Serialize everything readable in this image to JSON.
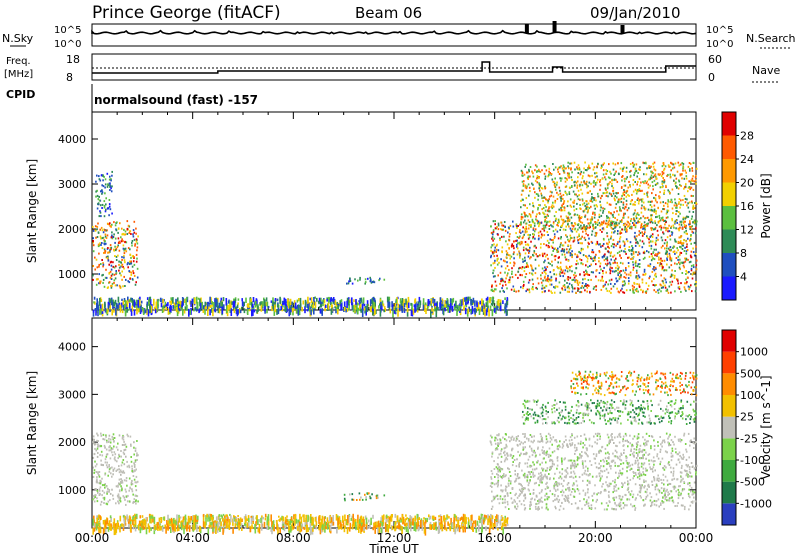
{
  "header": {
    "station": "Prince George (fitACF)",
    "beam": "Beam 06",
    "date": "09/Jan/2010"
  },
  "side_labels": {
    "nsky": "N.Sky",
    "nsearch": "N.Search",
    "freq": "Freq.",
    "freq_unit": "[MHz]",
    "nave": "Nave",
    "cpid": "CPID",
    "cpid_value": "normalsound (fast) -157"
  },
  "mini_axes": {
    "noise_ticks_left": [
      "10^5",
      "10^0"
    ],
    "noise_ticks_right": [
      "10^5",
      "10^0"
    ],
    "freq_ticks": [
      "18",
      "8"
    ],
    "nave_ticks": [
      "60",
      "0"
    ]
  },
  "x_axis": {
    "label": "Time UT",
    "ticks": [
      "00:00",
      "04:00",
      "08:00",
      "12:00",
      "16:00",
      "20:00",
      "00:00"
    ]
  },
  "chart_data": [
    {
      "type": "heatmap",
      "title": "Power",
      "ylabel": "Slant Range [km]",
      "ylim": [
        200,
        4600
      ],
      "yticks": [
        1000,
        2000,
        3000,
        4000
      ],
      "xlim_hours": [
        0,
        24
      ],
      "colorbar": {
        "label": "Power [dB]",
        "ticks": [
          "28",
          "24",
          "20",
          "16",
          "12",
          "8",
          "4"
        ],
        "colors": [
          "#1a1aff",
          "#1f4fbf",
          "#2e8b57",
          "#5bbf3f",
          "#f2d000",
          "#ff9900",
          "#ff5a00",
          "#e00000"
        ]
      },
      "scatter_regions": [
        {
          "t": [
            0.0,
            1.8
          ],
          "r": [
            700,
            2200
          ],
          "level": "strong"
        },
        {
          "t": [
            0.1,
            0.8
          ],
          "r": [
            2300,
            3300
          ],
          "level": "weak"
        },
        {
          "t": [
            10.0,
            11.6
          ],
          "r": [
            800,
            950
          ],
          "level": "weak"
        },
        {
          "t": [
            0.0,
            16.5
          ],
          "r": [
            200,
            500
          ],
          "level": "ground"
        },
        {
          "t": [
            15.8,
            24.0
          ],
          "r": [
            600,
            2200
          ],
          "level": "strong"
        },
        {
          "t": [
            17.0,
            24.0
          ],
          "r": [
            2000,
            3500
          ],
          "level": "medium"
        }
      ]
    },
    {
      "type": "heatmap",
      "title": "Velocity",
      "ylabel": "Slant Range [km]",
      "ylim": [
        200,
        4600
      ],
      "yticks": [
        1000,
        2000,
        3000,
        4000
      ],
      "xlim_hours": [
        0,
        24
      ],
      "colorbar": {
        "label": "Velocity [m s^-1]",
        "ticks": [
          "1000",
          "500",
          "100",
          "25",
          "-25",
          "-100",
          "-500",
          "-1000"
        ],
        "colors": [
          "#2a3fbf",
          "#1f7a4a",
          "#3faa3f",
          "#7bd24a",
          "#c0c0b8",
          "#f2c000",
          "#ff8c00",
          "#ff4000",
          "#e00000"
        ]
      },
      "scatter_regions": [
        {
          "t": [
            0.0,
            1.8
          ],
          "r": [
            700,
            2200
          ],
          "level": "ground-gray"
        },
        {
          "t": [
            10.0,
            11.6
          ],
          "r": [
            800,
            950
          ],
          "level": "mixed"
        },
        {
          "t": [
            0.0,
            16.5
          ],
          "r": [
            200,
            500
          ],
          "level": "ground-orange"
        },
        {
          "t": [
            15.8,
            24.0
          ],
          "r": [
            600,
            2200
          ],
          "level": "ground-gray"
        },
        {
          "t": [
            17.0,
            24.0
          ],
          "r": [
            2400,
            2900
          ],
          "level": "green"
        },
        {
          "t": [
            19.0,
            24.0
          ],
          "r": [
            3000,
            3500
          ],
          "level": "orange"
        }
      ]
    }
  ]
}
